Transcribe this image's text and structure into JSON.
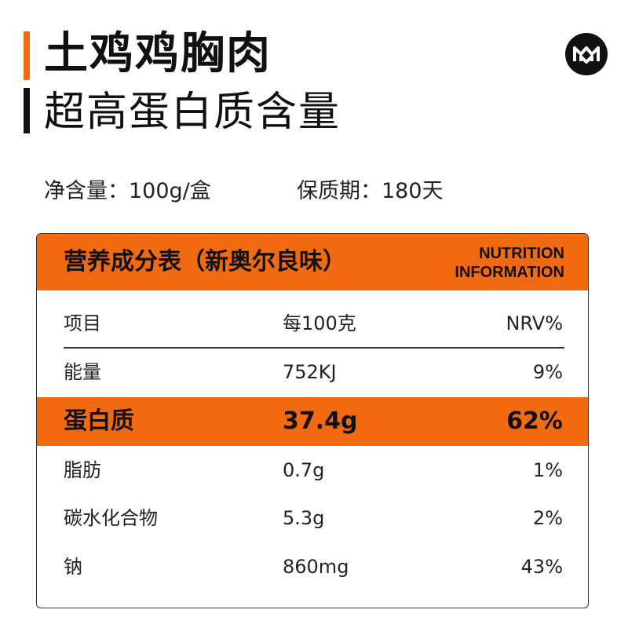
{
  "title": {
    "main": "土鸡鸡胸肉",
    "sub": "超高蛋白质含量"
  },
  "brand_logo": "MM-logo",
  "meta": {
    "net_content": "净含量：100g/盒",
    "shelf_life": "保质期：180天"
  },
  "nutrition": {
    "header_title": "营养成分表（新奥尔良味）",
    "header_en_line1": "NUTRITION",
    "header_en_line2": "INFORMATION",
    "columns": {
      "item": "项目",
      "per100": "每100克",
      "nrv": "NRV%"
    },
    "rows": [
      {
        "item": "能量",
        "per100": "752KJ",
        "nrv": "9%"
      },
      {
        "item": "蛋白质",
        "per100": "37.4g",
        "nrv": "62%"
      },
      {
        "item": "脂肪",
        "per100": "0.7g",
        "nrv": "1%"
      },
      {
        "item": "碳水化合物",
        "per100": "5.3g",
        "nrv": "2%"
      },
      {
        "item": "钠",
        "per100": "860mg",
        "nrv": "43%"
      }
    ]
  },
  "colors": {
    "accent": "#f26a10",
    "text": "#111111"
  }
}
